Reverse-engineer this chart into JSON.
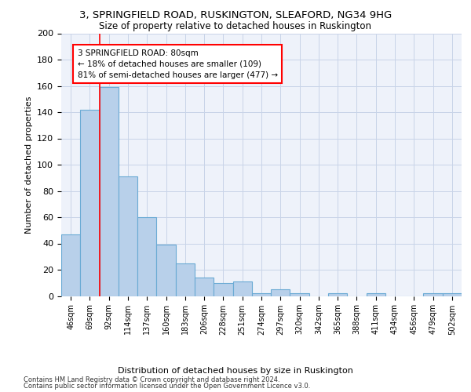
{
  "title1": "3, SPRINGFIELD ROAD, RUSKINGTON, SLEAFORD, NG34 9HG",
  "title2": "Size of property relative to detached houses in Ruskington",
  "xlabel": "Distribution of detached houses by size in Ruskington",
  "ylabel": "Number of detached properties",
  "bar_labels": [
    "46sqm",
    "69sqm",
    "92sqm",
    "114sqm",
    "137sqm",
    "160sqm",
    "183sqm",
    "206sqm",
    "228sqm",
    "251sqm",
    "274sqm",
    "297sqm",
    "320sqm",
    "342sqm",
    "365sqm",
    "388sqm",
    "411sqm",
    "434sqm",
    "456sqm",
    "479sqm",
    "502sqm"
  ],
  "bar_values": [
    47,
    142,
    159,
    91,
    60,
    39,
    25,
    14,
    10,
    11,
    2,
    5,
    2,
    0,
    2,
    0,
    2,
    0,
    0,
    2,
    2
  ],
  "bar_color": "#b8d0ea",
  "bar_edge_color": "#6aaad4",
  "red_line_x": 1.5,
  "annotation_box_text": "3 SPRINGFIELD ROAD: 80sqm\n← 18% of detached houses are smaller (109)\n81% of semi-detached houses are larger (477) →",
  "ylim": [
    0,
    200
  ],
  "yticks": [
    0,
    20,
    40,
    60,
    80,
    100,
    120,
    140,
    160,
    180,
    200
  ],
  "grid_color": "#c8d4e8",
  "background_color": "#eef2fa",
  "footnote1": "Contains HM Land Registry data © Crown copyright and database right 2024.",
  "footnote2": "Contains public sector information licensed under the Open Government Licence v3.0."
}
